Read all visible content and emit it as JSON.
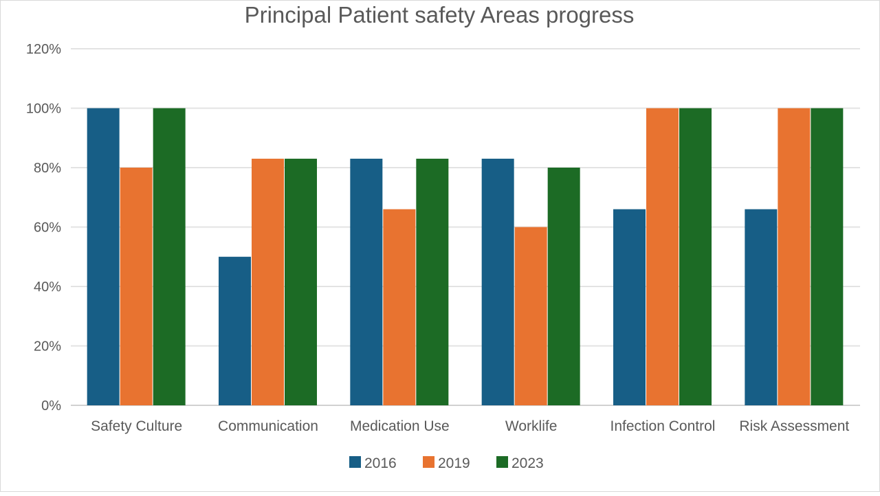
{
  "chart_data": {
    "type": "bar",
    "title": "Principal Patient safety Areas progress",
    "xlabel": "",
    "ylabel": "",
    "categories": [
      "Safety Culture",
      "Communication",
      "Medication Use",
      "Worklife",
      "Infection Control",
      "Risk Assessment"
    ],
    "series": [
      {
        "name": "2016",
        "color": "#175e86",
        "values": [
          100,
          50,
          83,
          83,
          66,
          66
        ]
      },
      {
        "name": "2019",
        "color": "#e87330",
        "values": [
          80,
          83,
          66,
          60,
          100,
          100
        ]
      },
      {
        "name": "2023",
        "color": "#1c6b25",
        "values": [
          100,
          83,
          83,
          80,
          100,
          100
        ]
      }
    ],
    "ylim": [
      0,
      120
    ],
    "yticks": [
      0,
      20,
      40,
      60,
      80,
      100,
      120
    ],
    "ytick_labels": [
      "0%",
      "20%",
      "40%",
      "60%",
      "80%",
      "100%",
      "120%"
    ],
    "grid": true,
    "legend_position": "bottom"
  }
}
